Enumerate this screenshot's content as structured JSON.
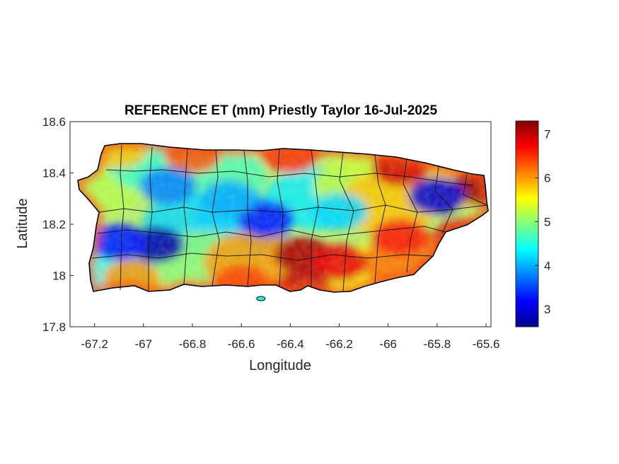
{
  "map": {
    "title": "REFERENCE ET (mm) Priestly Taylor 16-Jul-2025",
    "xlabel": "Longitude",
    "ylabel": "Latitude",
    "xlim": [
      -67.3,
      -65.58
    ],
    "ylim": [
      17.8,
      18.6
    ],
    "x_ticks": [
      "-67.2",
      "-67",
      "-66.8",
      "-66.6",
      "-66.4",
      "-66.2",
      "-66",
      "-65.8",
      "-65.6"
    ],
    "y_ticks": [
      "17.8",
      "18",
      "18.2",
      "18.4",
      "18.6"
    ],
    "colormap": "jet",
    "colorbar": {
      "range": [
        2.6,
        7.3
      ],
      "ticks": [
        "3",
        "4",
        "5",
        "6",
        "7"
      ]
    },
    "hotspots": [
      {
        "lon": -66.35,
        "lat": 18.08,
        "v": 7.1
      },
      {
        "lon": -66.2,
        "lat": 18.05,
        "v": 6.8
      },
      {
        "lon": -65.62,
        "lat": 18.35,
        "v": 7.2
      },
      {
        "lon": -65.95,
        "lat": 18.42,
        "v": 6.9
      },
      {
        "lon": -65.7,
        "lat": 18.15,
        "v": 7.0
      },
      {
        "lon": -66.6,
        "lat": 17.97,
        "v": 6.4
      },
      {
        "lon": -66.35,
        "lat": 17.95,
        "v": 7.0
      },
      {
        "lon": -67.05,
        "lat": 17.99,
        "v": 6.0
      },
      {
        "lon": -66.8,
        "lat": 18.47,
        "v": 6.3
      },
      {
        "lon": -66.4,
        "lat": 18.47,
        "v": 6.5
      },
      {
        "lon": -67.1,
        "lat": 18.49,
        "v": 5.8
      },
      {
        "lon": -65.95,
        "lat": 18.15,
        "v": 6.6
      }
    ],
    "coldspots": [
      {
        "lon": -66.95,
        "lat": 18.12,
        "v": 2.8
      },
      {
        "lon": -67.1,
        "lat": 18.13,
        "v": 3.3
      },
      {
        "lon": -66.5,
        "lat": 18.22,
        "v": 3.3
      },
      {
        "lon": -65.8,
        "lat": 18.31,
        "v": 3.0
      },
      {
        "lon": -66.9,
        "lat": 18.35,
        "v": 3.8
      },
      {
        "lon": -66.2,
        "lat": 18.25,
        "v": 4.2
      },
      {
        "lon": -66.65,
        "lat": 18.3,
        "v": 4.0
      }
    ]
  }
}
